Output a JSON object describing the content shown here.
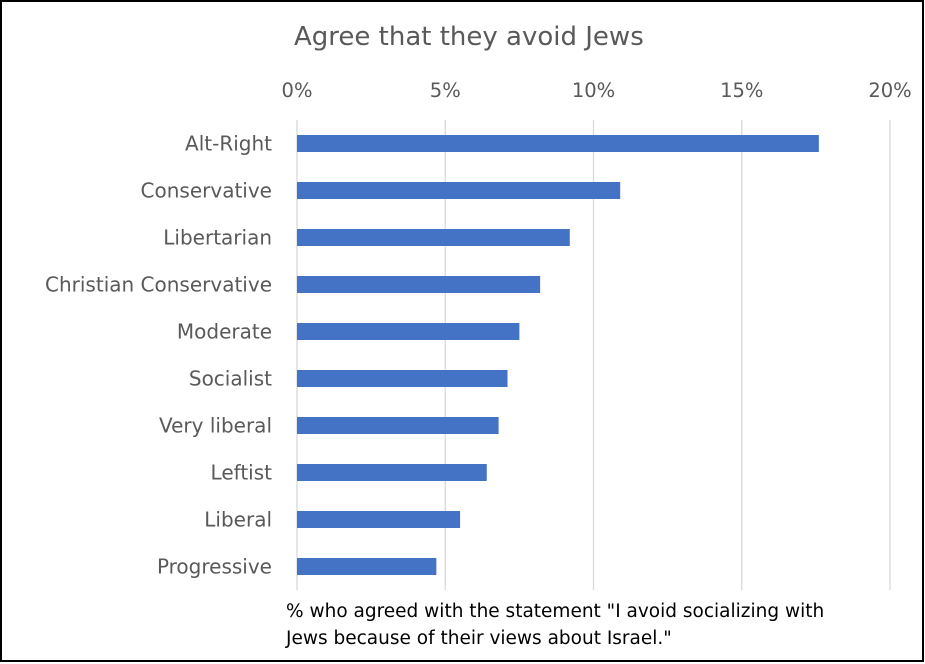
{
  "chart_data": {
    "type": "bar",
    "orientation": "horizontal",
    "title": "Agree that they avoid Jews",
    "categories": [
      "Alt-Right",
      "Conservative",
      "Libertarian",
      "Christian Conservative",
      "Moderate",
      "Socialist",
      "Very liberal",
      "Leftist",
      "Liberal",
      "Progressive"
    ],
    "values": [
      17.6,
      10.9,
      9.2,
      8.2,
      7.5,
      7.1,
      6.8,
      6.4,
      5.5,
      4.7
    ],
    "xlim": [
      0,
      20
    ],
    "xticks": [
      0,
      5,
      10,
      15,
      20
    ],
    "xtick_labels": [
      "0%",
      "5%",
      "10%",
      "15%",
      "20%"
    ],
    "x_axis_position": "top",
    "grid": true,
    "bar_color": "#4472C4",
    "grid_color": "#D9D9D9"
  },
  "footnote": {
    "line1": "% who agreed with the statement \"I avoid socializing with",
    "line2": "Jews because of their views about Israel.\""
  }
}
